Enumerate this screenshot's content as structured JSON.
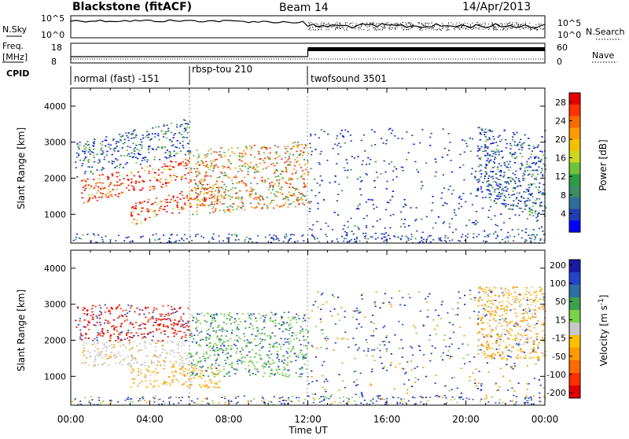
{
  "header": {
    "station": "Blackstone (fitACF)",
    "beam": "Beam 14",
    "date": "14/Apr/2013"
  },
  "strips": {
    "nsky_label": "N.Sky",
    "noise_ticks": [
      "10^5",
      "10^0"
    ],
    "nsearch_label": "N.Search",
    "freq_label_1": "Freq.",
    "freq_label_2": "[MHz]",
    "freq_ticks": [
      "18",
      "8"
    ],
    "nave_ticks": [
      "60",
      "0"
    ],
    "nave_label": "Nave",
    "cpid_label": "CPID",
    "cpid_segments": [
      {
        "label": "normal (fast) -151",
        "start_h": 0,
        "end_h": 6
      },
      {
        "label": "rbsp-tou 210",
        "start_h": 6,
        "end_h": 12
      },
      {
        "label": "twofsound 3501",
        "start_h": 12,
        "end_h": 24
      }
    ]
  },
  "chart_data": [
    {
      "type": "heatmap",
      "title": "",
      "xlabel": "Time UT",
      "ylabel": "Slant Range [km]",
      "xlim": [
        0,
        24
      ],
      "ylim": [
        200,
        4500
      ],
      "x_ticks": [
        "00:00",
        "04:00",
        "08:00",
        "12:00",
        "16:00",
        "20:00",
        "00:00"
      ],
      "y_ticks": [
        1000,
        2000,
        3000,
        4000
      ],
      "colorbar": {
        "label": "Power [dB]",
        "ticks": [
          4,
          8,
          12,
          16,
          20,
          24,
          28
        ],
        "range": [
          0,
          30
        ],
        "colors": [
          "#0000ff",
          "#1e3fb0",
          "#2f6e9a",
          "#3c8c64",
          "#2e9b46",
          "#6fc23a",
          "#c8d820",
          "#f2c000",
          "#ff9a00",
          "#ff6a00",
          "#ff3200",
          "#e80000"
        ]
      },
      "features": [
        {
          "t0": 0.5,
          "t1": 6.0,
          "r0": 1300,
          "r1": 2000,
          "level": "strong",
          "slope_km_per_h": 110
        },
        {
          "t0": 0.2,
          "t1": 6.0,
          "r0": 2000,
          "r1": 3000,
          "level": "weak",
          "slope_km_per_h": 120
        },
        {
          "t0": 3.0,
          "t1": 7.5,
          "r0": 700,
          "r1": 1300,
          "level": "strong",
          "slope_km_per_h": 140
        },
        {
          "t0": 6.0,
          "t1": 12.0,
          "r0": 1000,
          "r1": 2800,
          "level": "medium",
          "slope_km_per_h": 40
        },
        {
          "t0": 12.0,
          "t1": 24.0,
          "r0": 400,
          "r1": 3400,
          "level": "sparse",
          "slope_km_per_h": 0
        },
        {
          "t0": 20.5,
          "t1": 24.0,
          "r0": 1500,
          "r1": 3500,
          "level": "weak",
          "slope_km_per_h": -200
        }
      ]
    },
    {
      "type": "heatmap",
      "title": "",
      "xlabel": "Time UT",
      "ylabel": "Slant Range [km]",
      "xlim": [
        0,
        24
      ],
      "ylim": [
        200,
        4500
      ],
      "x_ticks": [
        "00:00",
        "04:00",
        "08:00",
        "12:00",
        "16:00",
        "20:00",
        "00:00"
      ],
      "y_ticks": [
        1000,
        2000,
        3000,
        4000
      ],
      "colorbar": {
        "label": "Velocity [m s^-1]",
        "tick_labels": [
          "200",
          "100",
          "50",
          "15",
          "-15",
          "-50",
          "-100",
          "-200"
        ],
        "range": [
          -250,
          250
        ],
        "colors": [
          "#1a1aa6",
          "#2244c8",
          "#2f6ea0",
          "#3ca050",
          "#7ad24a",
          "#c8c8c8",
          "#ffc000",
          "#ff9a00",
          "#ff6a00",
          "#ff3000",
          "#e00000"
        ]
      },
      "features": [
        {
          "t0": 0.5,
          "t1": 6.0,
          "r0": 1300,
          "r1": 2000,
          "velocity": 0,
          "ground_scatter": true
        },
        {
          "t0": 3.0,
          "t1": 7.5,
          "r0": 700,
          "r1": 1300,
          "velocity": -60
        },
        {
          "t0": 0.2,
          "t1": 6.0,
          "r0": 2000,
          "r1": 3000,
          "velocity": -120
        },
        {
          "t0": 6.0,
          "t1": 12.0,
          "r0": 1000,
          "r1": 2800,
          "velocity": 60
        },
        {
          "t0": 12.0,
          "t1": 24.0,
          "r0": 400,
          "r1": 3400,
          "velocity": 0
        },
        {
          "t0": 20.5,
          "t1": 24.0,
          "r0": 1500,
          "r1": 3500,
          "velocity": -30
        }
      ]
    }
  ]
}
